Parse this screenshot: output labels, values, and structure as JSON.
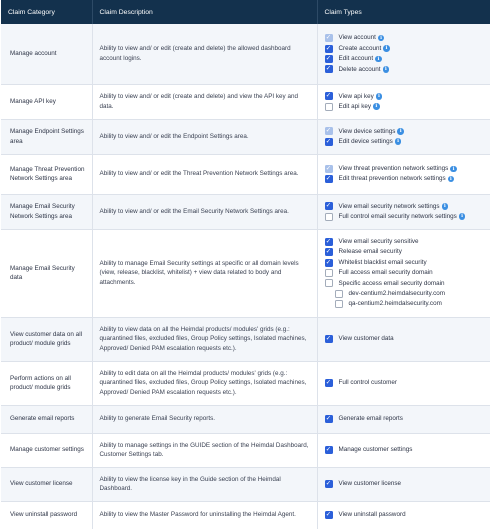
{
  "header": {
    "col_category": "Claim Category",
    "col_description": "Claim Description",
    "col_types": "Claim Types"
  },
  "rows": [
    {
      "category": "Manage account",
      "description": "Ability to view and/ or edit (create and delete) the allowed dashboard account logins.",
      "types": [
        {
          "label": "View account",
          "state": "disabled-checked",
          "info": true
        },
        {
          "label": "Create account",
          "state": "checked",
          "info": true
        },
        {
          "label": "Edit account",
          "state": "checked",
          "info": true
        },
        {
          "label": "Delete account",
          "state": "checked",
          "info": true
        }
      ]
    },
    {
      "category": "Manage API key",
      "description": "Ability to view and/ or edit (create and delete) and view the API key and data.",
      "types": [
        {
          "label": "View api key",
          "state": "checked",
          "info": true
        },
        {
          "label": "Edit api key",
          "state": "unchecked",
          "info": true
        }
      ]
    },
    {
      "category": "Manage Endpoint Settings area",
      "description": "Ability to view and/ or edit the Endpoint Settings area.",
      "types": [
        {
          "label": "View device settings",
          "state": "disabled-checked",
          "info": true
        },
        {
          "label": "Edit device settings",
          "state": "checked",
          "info": true
        }
      ]
    },
    {
      "category": "Manage Threat Prevention Network Settings area",
      "description": "Ability to view and/ or edit the Threat Prevention Network Settings area.",
      "types": [
        {
          "label": "View threat prevention network settings",
          "state": "disabled-checked",
          "info": true
        },
        {
          "label": "Edit threat prevention network settings",
          "state": "checked",
          "info": true
        }
      ]
    },
    {
      "category": "Manage Email Security Network Settings area",
      "description": "Ability to view and/ or edit the Email Security Network Settings area.",
      "types": [
        {
          "label": "View email security network settings",
          "state": "checked",
          "info": true
        },
        {
          "label": "Full control email security network settings",
          "state": "unchecked",
          "info": true
        }
      ]
    },
    {
      "category": "Manage Email Security data",
      "description": "Ability to manage Email Security settings at specific or all domain levels (view, release, blacklist, whitelist) + view data related to body and attachments.",
      "types": [
        {
          "label": "View email security sensitive",
          "state": "checked",
          "info": false
        },
        {
          "label": "Release email security",
          "state": "checked",
          "info": false
        },
        {
          "label": "Whitelist blacklist email security",
          "state": "checked",
          "info": false
        },
        {
          "label": "Full access email security domain",
          "state": "unchecked",
          "info": false
        },
        {
          "label": "Specific access email security domain",
          "state": "unchecked",
          "info": false
        },
        {
          "label": "dev-centium2.heimdalsecurity.com",
          "state": "unchecked",
          "info": false,
          "sub": true
        },
        {
          "label": "qa-centium2.heimdalsecurity.com",
          "state": "unchecked",
          "info": false,
          "sub": true
        }
      ]
    },
    {
      "category": "View customer data on all product/ module grids",
      "description": "Ability to view data on all the Heimdal products/ modules' grids (e.g.: quarantined files, excluded files, Group Policy settings, Isolated machines, Approved/ Denied PAM escalation requests etc.).",
      "types": [
        {
          "label": "View customer data",
          "state": "checked",
          "info": false
        }
      ]
    },
    {
      "category": "Perform actions on all product/ module grids",
      "description": "Ability to edit data on all the Heimdal products/ modules' grids (e.g.: quarantined files, excluded files, Group Policy settings, Isolated machines, Approved/ Denied PAM escalation requests etc.).",
      "types": [
        {
          "label": "Full control customer",
          "state": "checked",
          "info": false
        }
      ]
    },
    {
      "category": "Generate email reports",
      "description": "Ability to generate Email Security reports.",
      "types": [
        {
          "label": "Generate email reports",
          "state": "checked",
          "info": false
        }
      ]
    },
    {
      "category": "Manage customer settings",
      "description": "Ability to manage settings in the GUIDE section of the Heimdal Dashboard, Customer Settings tab.",
      "types": [
        {
          "label": "Manage customer settings",
          "state": "checked",
          "info": false
        }
      ]
    },
    {
      "category": "View customer license",
      "description": "Ability to view the license key in the Guide section of the Heimdal Dashboard.",
      "types": [
        {
          "label": "View customer license",
          "state": "checked",
          "info": false
        }
      ]
    },
    {
      "category": "View uninstall password",
      "description": "Ability to view the Master Password for uninstalling the Heimdal Agent.",
      "types": [
        {
          "label": "View uninstall password",
          "state": "checked",
          "info": false
        }
      ]
    }
  ],
  "icons": {
    "info_glyph": "i",
    "check_glyph": "✓"
  }
}
